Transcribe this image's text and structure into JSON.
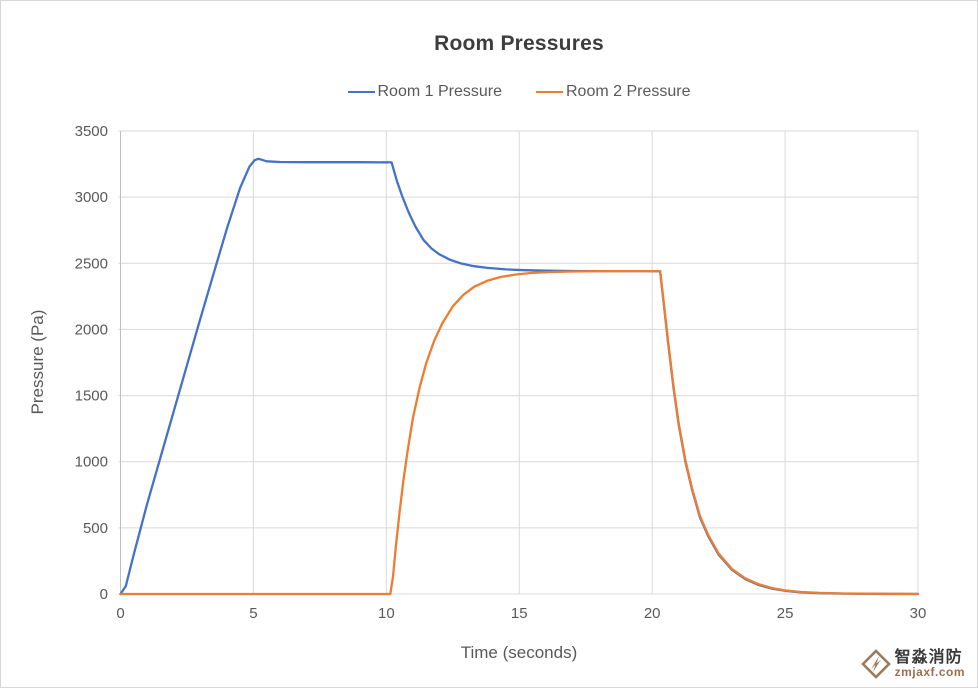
{
  "chart_data": {
    "type": "line",
    "title": "Room Pressures",
    "xlabel": "Time (seconds)",
    "ylabel": "Pressure (Pa)",
    "xlim": [
      0,
      30
    ],
    "ylim": [
      0,
      3500
    ],
    "x_ticks": [
      0,
      5,
      10,
      15,
      20,
      25,
      30
    ],
    "y_ticks": [
      0,
      500,
      1000,
      1500,
      2000,
      2500,
      3000,
      3500
    ],
    "grid": true,
    "legend_position": "top-center",
    "gridline_color": "#d9d9d9",
    "axis_line_color": "#bfbfbf",
    "series": [
      {
        "name": "Room 1 Pressure",
        "color": "#4472C4",
        "points": [
          [
            0,
            0
          ],
          [
            0.2,
            60
          ],
          [
            0.5,
            300
          ],
          [
            1,
            680
          ],
          [
            1.5,
            1030
          ],
          [
            2,
            1380
          ],
          [
            2.5,
            1730
          ],
          [
            3,
            2080
          ],
          [
            3.5,
            2420
          ],
          [
            4,
            2760
          ],
          [
            4.5,
            3070
          ],
          [
            4.85,
            3230
          ],
          [
            5.05,
            3280
          ],
          [
            5.2,
            3290
          ],
          [
            5.5,
            3271
          ],
          [
            6,
            3266
          ],
          [
            7,
            3264
          ],
          [
            8,
            3264
          ],
          [
            9,
            3264
          ],
          [
            10.2,
            3263
          ],
          [
            10.4,
            3120
          ],
          [
            10.6,
            3005
          ],
          [
            10.85,
            2880
          ],
          [
            11.1,
            2775
          ],
          [
            11.4,
            2675
          ],
          [
            11.7,
            2612
          ],
          [
            12,
            2567
          ],
          [
            12.4,
            2526
          ],
          [
            12.8,
            2499
          ],
          [
            13.3,
            2478
          ],
          [
            13.8,
            2465
          ],
          [
            14.5,
            2454
          ],
          [
            15.2,
            2448
          ],
          [
            16,
            2444
          ],
          [
            17,
            2442
          ],
          [
            18,
            2441
          ],
          [
            19,
            2441
          ],
          [
            20.3,
            2440
          ],
          [
            20.45,
            2170
          ],
          [
            20.6,
            1900
          ],
          [
            20.8,
            1565
          ],
          [
            21,
            1275
          ],
          [
            21.25,
            1000
          ],
          [
            21.5,
            790
          ],
          [
            21.8,
            578
          ],
          [
            22.1,
            440
          ],
          [
            22.5,
            298
          ],
          [
            23,
            183
          ],
          [
            23.5,
            113
          ],
          [
            24,
            69
          ],
          [
            24.5,
            41
          ],
          [
            25,
            24
          ],
          [
            25.6,
            13
          ],
          [
            26.3,
            6
          ],
          [
            27.2,
            3
          ],
          [
            28.2,
            1
          ],
          [
            30,
            0
          ]
        ]
      },
      {
        "name": "Room 2 Pressure",
        "color": "#ED7D31",
        "points": [
          [
            0,
            0
          ],
          [
            10.15,
            0
          ],
          [
            10.25,
            130
          ],
          [
            10.35,
            340
          ],
          [
            10.5,
            620
          ],
          [
            10.65,
            870
          ],
          [
            10.8,
            1080
          ],
          [
            11,
            1330
          ],
          [
            11.25,
            1560
          ],
          [
            11.5,
            1745
          ],
          [
            11.8,
            1915
          ],
          [
            12.1,
            2045
          ],
          [
            12.5,
            2175
          ],
          [
            12.9,
            2262
          ],
          [
            13.3,
            2322
          ],
          [
            13.8,
            2368
          ],
          [
            14.3,
            2396
          ],
          [
            14.9,
            2416
          ],
          [
            15.5,
            2427
          ],
          [
            16.2,
            2434
          ],
          [
            17,
            2438
          ],
          [
            18,
            2440
          ],
          [
            19,
            2441
          ],
          [
            20.3,
            2441
          ],
          [
            20.45,
            2180
          ],
          [
            20.6,
            1910
          ],
          [
            20.8,
            1575
          ],
          [
            21,
            1285
          ],
          [
            21.25,
            1012
          ],
          [
            21.5,
            800
          ],
          [
            21.8,
            588
          ],
          [
            22.1,
            450
          ],
          [
            22.5,
            306
          ],
          [
            23,
            190
          ],
          [
            23.5,
            119
          ],
          [
            24,
            74
          ],
          [
            24.5,
            45
          ],
          [
            25,
            27
          ],
          [
            25.6,
            15
          ],
          [
            26.3,
            8
          ],
          [
            27.2,
            4
          ],
          [
            28.2,
            2
          ],
          [
            30,
            1
          ]
        ]
      }
    ]
  },
  "watermark": {
    "brand": "智淼消防",
    "site": "zmjaxf.com",
    "logo_color": "#9b7b5b"
  }
}
